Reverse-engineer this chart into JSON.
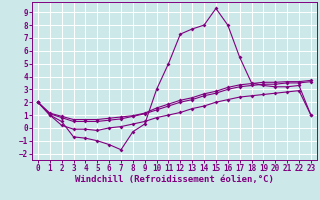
{
  "xlabel": "Windchill (Refroidissement éolien,°C)",
  "background_color": "#cce8e8",
  "grid_color": "#ffffff",
  "line_color": "#800080",
  "xlim": [
    -0.5,
    23.5
  ],
  "ylim": [
    -2.5,
    9.8
  ],
  "yticks": [
    -2,
    -1,
    0,
    1,
    2,
    3,
    4,
    5,
    6,
    7,
    8,
    9
  ],
  "xticks": [
    0,
    1,
    2,
    3,
    4,
    5,
    6,
    7,
    8,
    9,
    10,
    11,
    12,
    13,
    14,
    15,
    16,
    17,
    18,
    19,
    20,
    21,
    22,
    23
  ],
  "line1_x": [
    0,
    1,
    2,
    3,
    4,
    5,
    6,
    7,
    8,
    9,
    10,
    11,
    12,
    13,
    14,
    15,
    16,
    17,
    18,
    19,
    20,
    21,
    22,
    23
  ],
  "line1_y": [
    2.0,
    1.0,
    0.5,
    -0.7,
    -0.8,
    -1.0,
    -1.3,
    -1.7,
    -0.3,
    0.3,
    3.0,
    5.0,
    7.3,
    7.7,
    8.0,
    9.3,
    8.0,
    5.5,
    3.5,
    3.3,
    3.2,
    3.2,
    3.3,
    1.0
  ],
  "line2_x": [
    0,
    1,
    2,
    3,
    4,
    5,
    6,
    7,
    8,
    9,
    10,
    11,
    12,
    13,
    14,
    15,
    16,
    17,
    18,
    19,
    20,
    21,
    22,
    23
  ],
  "line2_y": [
    2.0,
    1.1,
    0.8,
    0.5,
    0.5,
    0.5,
    0.6,
    0.7,
    0.9,
    1.1,
    1.4,
    1.7,
    2.0,
    2.2,
    2.5,
    2.7,
    3.0,
    3.2,
    3.3,
    3.4,
    3.4,
    3.5,
    3.5,
    3.6
  ],
  "line3_x": [
    0,
    1,
    2,
    3,
    4,
    5,
    6,
    7,
    8,
    9,
    10,
    11,
    12,
    13,
    14,
    15,
    16,
    17,
    18,
    19,
    20,
    21,
    22,
    23
  ],
  "line3_y": [
    2.0,
    1.15,
    0.9,
    0.65,
    0.65,
    0.65,
    0.75,
    0.85,
    0.95,
    1.15,
    1.55,
    1.85,
    2.15,
    2.35,
    2.65,
    2.85,
    3.15,
    3.35,
    3.45,
    3.55,
    3.55,
    3.6,
    3.6,
    3.7
  ],
  "line4_x": [
    0,
    1,
    2,
    3,
    4,
    5,
    6,
    7,
    8,
    9,
    10,
    11,
    12,
    13,
    14,
    15,
    16,
    17,
    18,
    19,
    20,
    21,
    22,
    23
  ],
  "line4_y": [
    2.0,
    1.0,
    0.2,
    -0.1,
    -0.1,
    -0.2,
    0.0,
    0.1,
    0.3,
    0.5,
    0.8,
    1.0,
    1.2,
    1.5,
    1.7,
    2.0,
    2.2,
    2.4,
    2.5,
    2.6,
    2.7,
    2.8,
    2.9,
    1.0
  ],
  "tick_fontsize": 5.5,
  "xlabel_fontsize": 6.5
}
